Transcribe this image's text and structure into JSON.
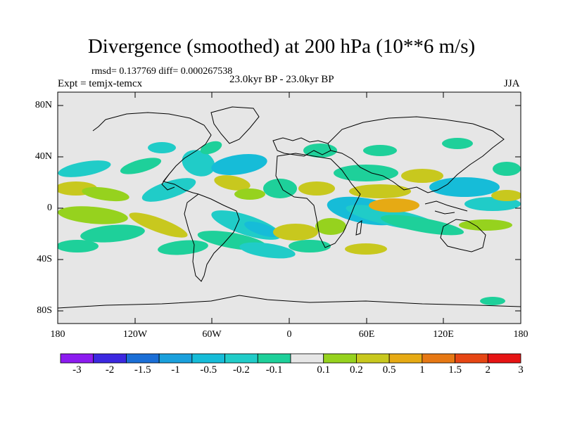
{
  "title": "Divergence (smoothed) at 200 hPa (10**6 m/s)",
  "stats": "rmsd= 0.137769 diff= 0.000267538",
  "experiment": "Expt = temjx-temcx",
  "period": "23.0kyr BP - 23.0kyr BP",
  "season": "JJA",
  "y_axis_labels": [
    "80N",
    "40N",
    "0",
    "40S",
    "80S"
  ],
  "x_axis_labels": [
    "180",
    "120W",
    "60W",
    "0",
    "60E",
    "120E",
    "180"
  ],
  "colorbar": {
    "labels": [
      "-3",
      "-2",
      "-1.5",
      "-1",
      "-0.5",
      "-0.2",
      "-0.1",
      "0.1",
      "0.2",
      "0.5",
      "1",
      "1.5",
      "2",
      "3"
    ],
    "colors": [
      "#8c1bf0",
      "#3c28e0",
      "#1a6ed6",
      "#1aa0dc",
      "#16bcd8",
      "#20ccc8",
      "#1ed09a",
      "#e6e6e6",
      "#96d21e",
      "#c8c81e",
      "#e6aa14",
      "#e67814",
      "#e64614",
      "#e61414"
    ]
  },
  "map_colors": {
    "background": "#e6e6e6",
    "neg_weak": "#1ed09a",
    "neg_mid": "#20ccc8",
    "neg_strong": "#16bcd8",
    "pos_weak": "#96d21e",
    "pos_mid": "#c8c81e",
    "pos_strong": "#e6aa14",
    "coast": "#000000"
  }
}
